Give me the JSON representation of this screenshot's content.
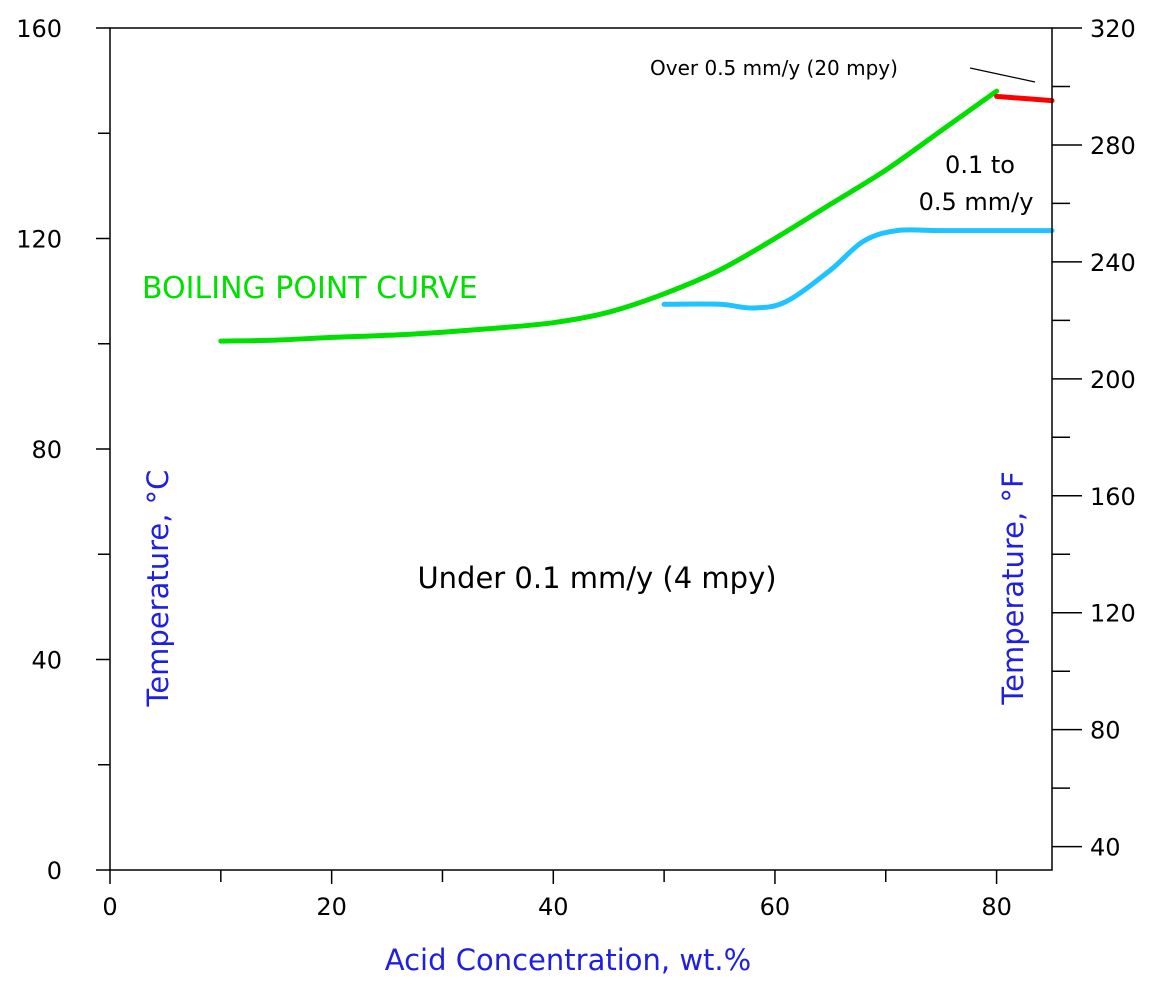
{
  "chart_data": {
    "type": "line",
    "title": "",
    "xlabel": "Acid Concentration, wt.%",
    "ylabel": "Temperature, °C",
    "y2label": "Temperature, °F",
    "xlim": [
      0,
      85
    ],
    "ylim": [
      0,
      160
    ],
    "y2lim": [
      32,
      320
    ],
    "x_ticks": [
      0,
      20,
      40,
      60,
      80
    ],
    "y_ticks": [
      0,
      40,
      80,
      120,
      160
    ],
    "y2_ticks": [
      40,
      80,
      120,
      160,
      200,
      240,
      280,
      320
    ],
    "grid": false,
    "series": [
      {
        "name": "BOILING POINT CURVE",
        "color": "#00e000",
        "x": [
          10,
          15,
          20,
          25,
          30,
          35,
          40,
          45,
          50,
          55,
          60,
          65,
          70,
          75,
          80
        ],
        "y": [
          100.5,
          100.7,
          101.2,
          101.6,
          102.2,
          103,
          104,
          106,
          109.5,
          114,
          120,
          126.5,
          133,
          140.5,
          148
        ]
      },
      {
        "name": "",
        "color": "#1ec3ff",
        "x": [
          50,
          55,
          58,
          61,
          65,
          68,
          71,
          75,
          80,
          85
        ],
        "y": [
          107.5,
          107.5,
          106.8,
          108,
          114,
          119.5,
          121.5,
          121.5,
          121.5,
          121.5
        ]
      },
      {
        "name": "",
        "color": "#ff0000",
        "x": [
          80,
          85
        ],
        "y": [
          147,
          146.2
        ]
      }
    ],
    "annotations": {
      "boiling_label": "BOILING POINT CURVE",
      "over": "Over 0.5 mm/y (20 mpy)",
      "mid_line1": "0.1 to",
      "mid_line2": "0.5 mm/y",
      "under": "Under 0.1 mm/y (4 mpy)"
    }
  }
}
